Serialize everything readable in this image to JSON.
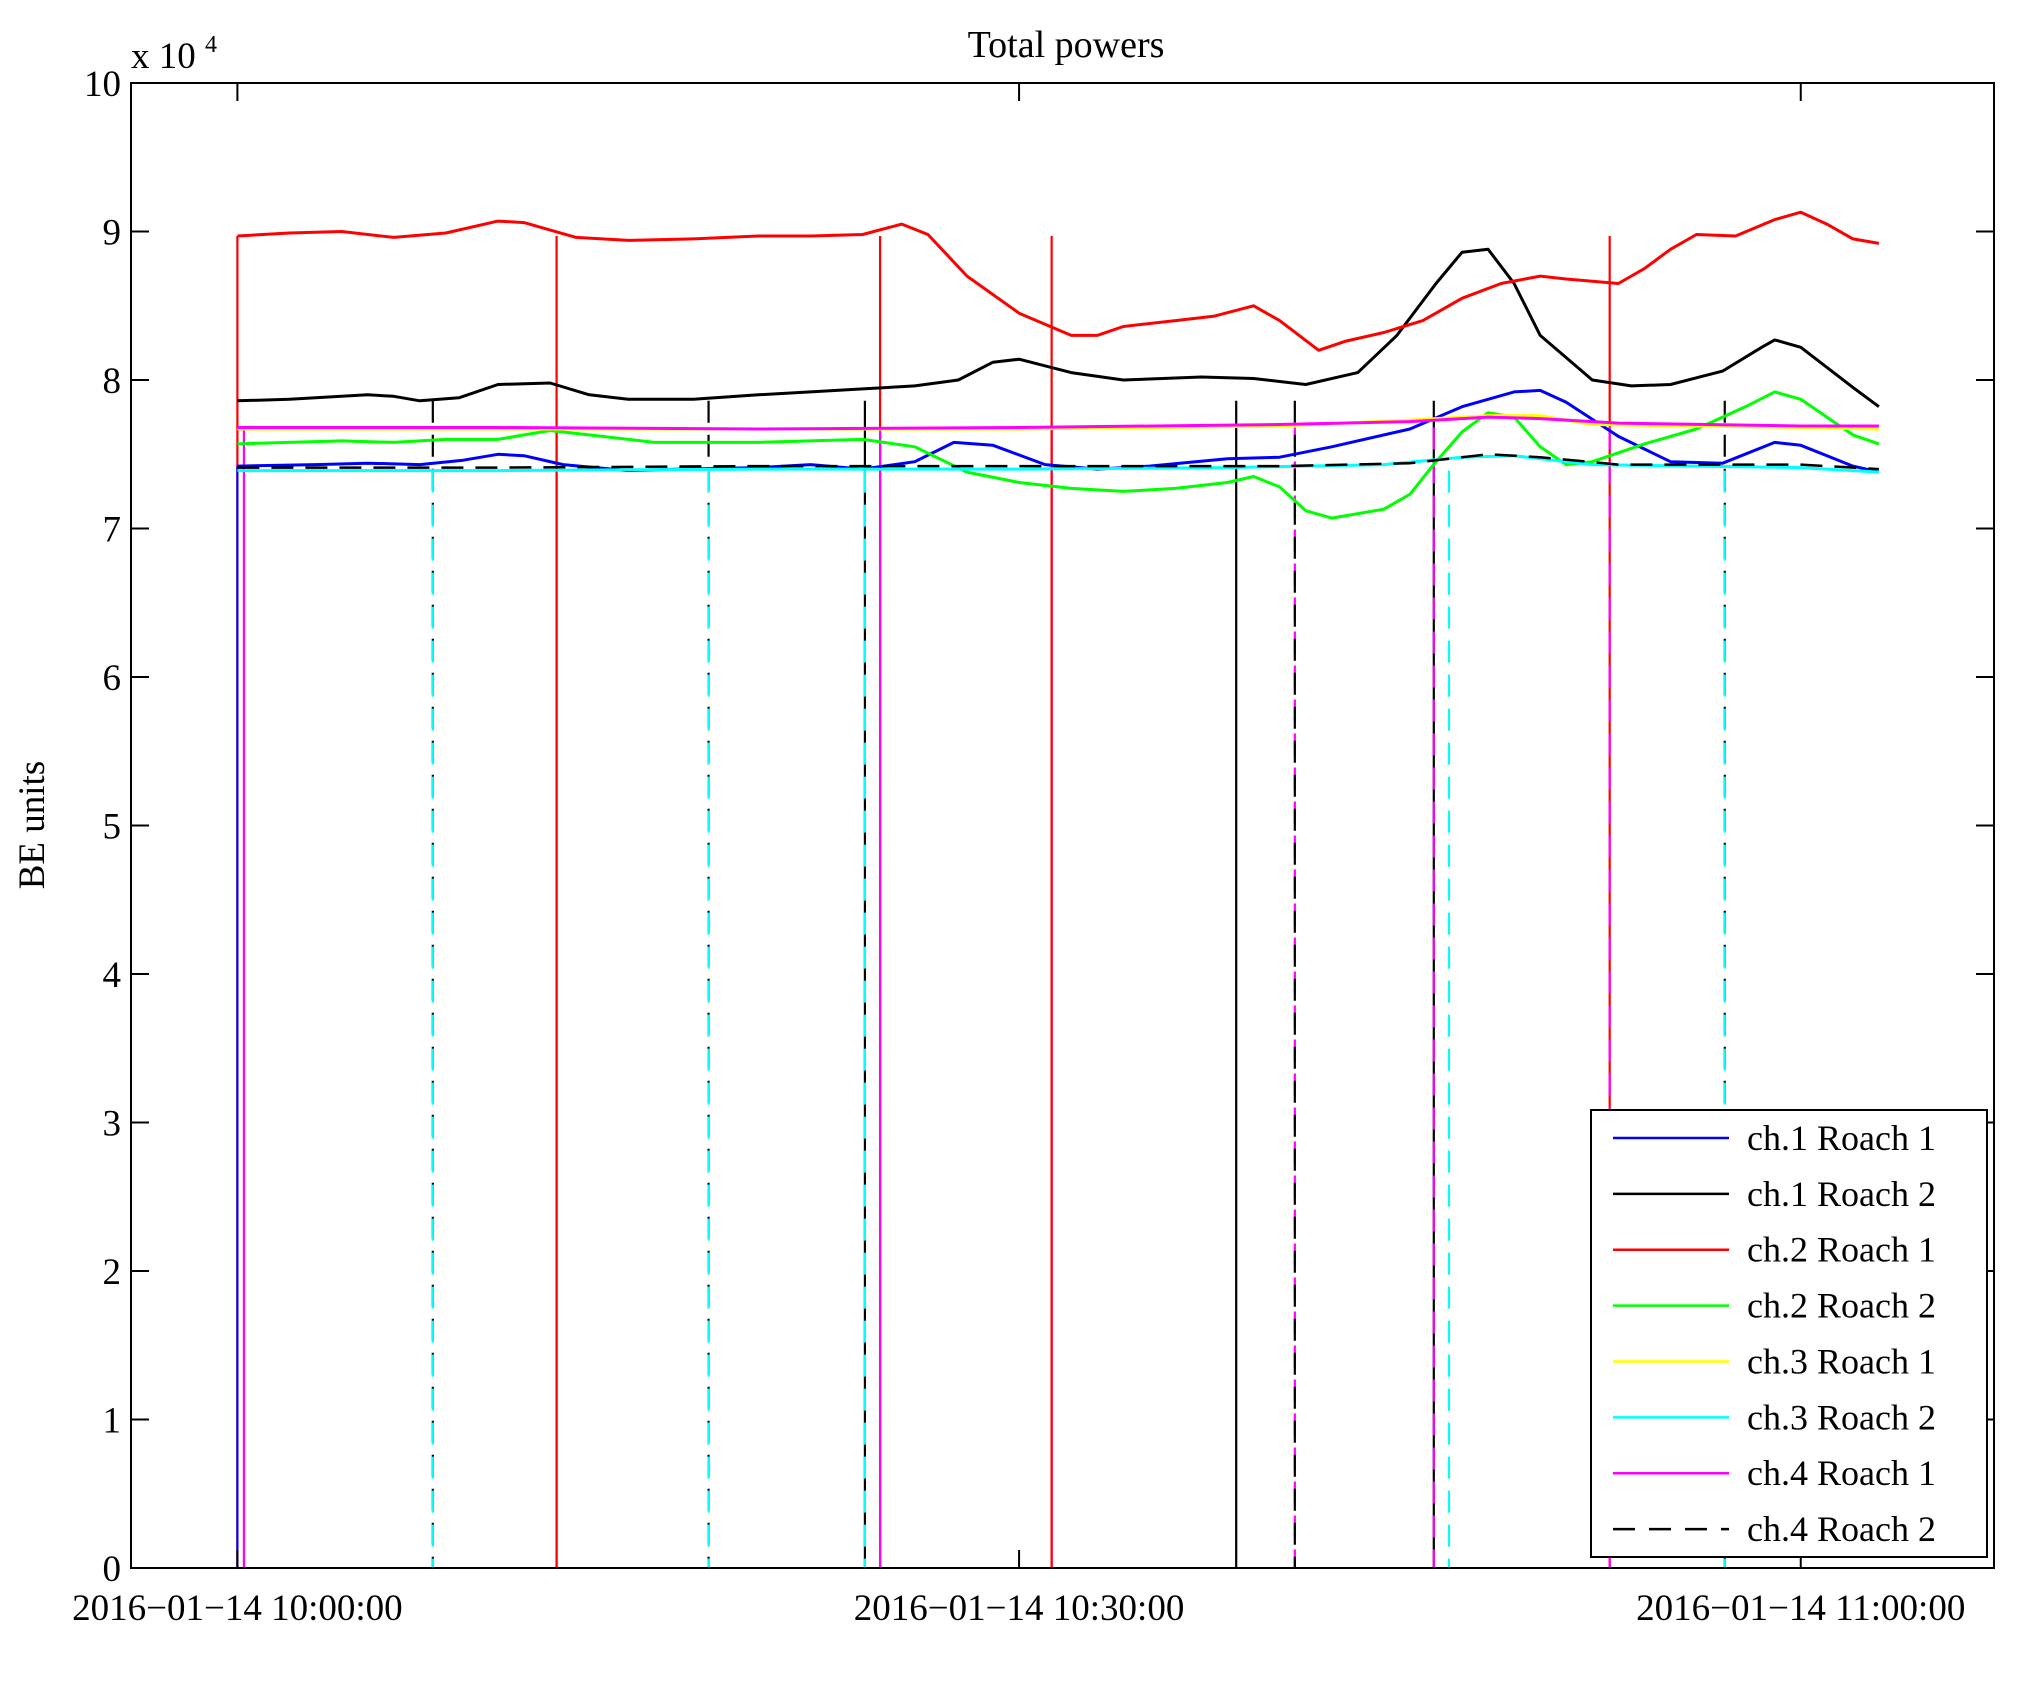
{
  "chart_data": {
    "type": "line",
    "title": "Total powers",
    "ylabel": "BE units",
    "xlabel": "",
    "y_multiplier_label": "x 10",
    "y_multiplier_exponent": "4",
    "ylim": [
      0,
      10
    ],
    "yticks": [
      0,
      1,
      2,
      3,
      4,
      5,
      6,
      7,
      8,
      9,
      10
    ],
    "ytick_labels": [
      "0",
      "1",
      "2",
      "3",
      "4",
      "5",
      "6",
      "7",
      "8",
      "9",
      "10"
    ],
    "xlim": [
      "2016-01-14 09:55:55",
      "2016-01-14 11:07:25"
    ],
    "xticks": [
      {
        "time": "2016-01-14 10:00:00",
        "label": "2016−01−14 10:00:00"
      },
      {
        "time": "2016-01-14 10:30:00",
        "label": "2016−01−14 10:30:00"
      },
      {
        "time": "2016-01-14 11:00:00",
        "label": "2016−01−14 11:00:00"
      }
    ],
    "legend_position": "bottom-right",
    "grid": false,
    "series": [
      {
        "name": "ch.1 Roach 1",
        "color": "#0000ff",
        "dash": "solid",
        "points": [
          [
            "10:00:00",
            7.42
          ],
          [
            "10:03:00",
            7.43
          ],
          [
            "10:05:00",
            7.44
          ],
          [
            "10:07:00",
            7.43
          ],
          [
            "10:08:40",
            7.46
          ],
          [
            "10:10:00",
            7.5
          ],
          [
            "10:11:00",
            7.49
          ],
          [
            "10:12:30",
            7.43
          ],
          [
            "10:15:00",
            7.39
          ],
          [
            "10:17:00",
            7.4
          ],
          [
            "10:20:00",
            7.41
          ],
          [
            "10:22:00",
            7.43
          ],
          [
            "10:24:00",
            7.4
          ],
          [
            "10:26:00",
            7.45
          ],
          [
            "10:27:30",
            7.58
          ],
          [
            "10:29:00",
            7.56
          ],
          [
            "10:31:00",
            7.43
          ],
          [
            "10:33:00",
            7.4
          ],
          [
            "10:35:00",
            7.42
          ],
          [
            "10:38:00",
            7.47
          ],
          [
            "10:40:00",
            7.48
          ],
          [
            "10:42:00",
            7.55
          ],
          [
            "10:45:00",
            7.67
          ],
          [
            "10:47:00",
            7.82
          ],
          [
            "10:49:00",
            7.92
          ],
          [
            "10:50:00",
            7.93
          ],
          [
            "10:51:00",
            7.85
          ],
          [
            "10:53:00",
            7.62
          ],
          [
            "10:55:00",
            7.45
          ],
          [
            "10:57:00",
            7.44
          ],
          [
            "10:59:00",
            7.58
          ],
          [
            "11:00:00",
            7.56
          ],
          [
            "11:02:00",
            7.42
          ],
          [
            "11:03:00",
            7.38
          ]
        ]
      },
      {
        "name": "ch.1 Roach 2",
        "color": "#000000",
        "dash": "solid",
        "points": [
          [
            "10:00:00",
            7.86
          ],
          [
            "10:02:00",
            7.87
          ],
          [
            "10:05:00",
            7.9
          ],
          [
            "10:06:00",
            7.89
          ],
          [
            "10:07:00",
            7.86
          ],
          [
            "10:08:30",
            7.88
          ],
          [
            "10:10:00",
            7.97
          ],
          [
            "10:12:00",
            7.98
          ],
          [
            "10:13:30",
            7.9
          ],
          [
            "10:15:00",
            7.87
          ],
          [
            "10:17:30",
            7.87
          ],
          [
            "10:20:00",
            7.9
          ],
          [
            "10:22:00",
            7.92
          ],
          [
            "10:24:00",
            7.94
          ],
          [
            "10:26:00",
            7.96
          ],
          [
            "10:27:40",
            8.0
          ],
          [
            "10:29:00",
            8.12
          ],
          [
            "10:30:00",
            8.14
          ],
          [
            "10:32:00",
            8.05
          ],
          [
            "10:34:00",
            8.0
          ],
          [
            "10:37:00",
            8.02
          ],
          [
            "10:39:00",
            8.01
          ],
          [
            "10:41:00",
            7.97
          ],
          [
            "10:43:00",
            8.05
          ],
          [
            "10:44:30",
            8.3
          ],
          [
            "10:46:00",
            8.65
          ],
          [
            "10:47:00",
            8.86
          ],
          [
            "10:48:00",
            8.88
          ],
          [
            "10:49:00",
            8.65
          ],
          [
            "10:50:00",
            8.3
          ],
          [
            "10:52:00",
            8.0
          ],
          [
            "10:53:30",
            7.96
          ],
          [
            "10:55:00",
            7.97
          ],
          [
            "10:57:00",
            8.06
          ],
          [
            "10:58:30",
            8.22
          ],
          [
            "10:59:00",
            8.27
          ],
          [
            "11:00:00",
            8.22
          ],
          [
            "11:02:00",
            7.95
          ],
          [
            "11:03:00",
            7.82
          ]
        ]
      },
      {
        "name": "ch.2 Roach 1",
        "color": "#ff0000",
        "dash": "solid",
        "points": [
          [
            "10:00:00",
            8.97
          ],
          [
            "10:02:00",
            8.99
          ],
          [
            "10:04:00",
            9.0
          ],
          [
            "10:06:00",
            8.96
          ],
          [
            "10:08:00",
            8.99
          ],
          [
            "10:10:00",
            9.07
          ],
          [
            "10:11:00",
            9.06
          ],
          [
            "10:13:00",
            8.96
          ],
          [
            "10:15:00",
            8.94
          ],
          [
            "10:17:30",
            8.95
          ],
          [
            "10:20:00",
            8.97
          ],
          [
            "10:22:00",
            8.97
          ],
          [
            "10:24:00",
            8.98
          ],
          [
            "10:25:30",
            9.05
          ],
          [
            "10:26:30",
            8.98
          ],
          [
            "10:28:00",
            8.7
          ],
          [
            "10:30:00",
            8.45
          ],
          [
            "10:32:00",
            8.3
          ],
          [
            "10:33:00",
            8.3
          ],
          [
            "10:34:00",
            8.36
          ],
          [
            "10:36:00",
            8.4
          ],
          [
            "10:37:30",
            8.43
          ],
          [
            "10:39:00",
            8.5
          ],
          [
            "10:40:00",
            8.4
          ],
          [
            "10:41:30",
            8.2
          ],
          [
            "10:42:30",
            8.26
          ],
          [
            "10:44:00",
            8.32
          ],
          [
            "10:45:30",
            8.4
          ],
          [
            "10:47:00",
            8.55
          ],
          [
            "10:48:30",
            8.65
          ],
          [
            "10:50:00",
            8.7
          ],
          [
            "10:51:00",
            8.68
          ],
          [
            "10:53:00",
            8.65
          ],
          [
            "10:54:00",
            8.75
          ],
          [
            "10:55:00",
            8.88
          ],
          [
            "10:56:00",
            8.98
          ],
          [
            "10:57:30",
            8.97
          ],
          [
            "10:59:00",
            9.08
          ],
          [
            "11:00:00",
            9.13
          ],
          [
            "11:01:00",
            9.05
          ],
          [
            "11:02:00",
            8.95
          ],
          [
            "11:03:00",
            8.92
          ]
        ]
      },
      {
        "name": "ch.2 Roach 2",
        "color": "#00ff00",
        "dash": "solid",
        "points": [
          [
            "10:00:00",
            7.57
          ],
          [
            "10:02:00",
            7.58
          ],
          [
            "10:04:00",
            7.59
          ],
          [
            "10:06:00",
            7.58
          ],
          [
            "10:08:00",
            7.6
          ],
          [
            "10:10:00",
            7.6
          ],
          [
            "10:12:00",
            7.66
          ],
          [
            "10:14:00",
            7.62
          ],
          [
            "10:16:00",
            7.58
          ],
          [
            "10:20:00",
            7.58
          ],
          [
            "10:24:00",
            7.6
          ],
          [
            "10:26:00",
            7.55
          ],
          [
            "10:28:00",
            7.38
          ],
          [
            "10:30:00",
            7.31
          ],
          [
            "10:32:00",
            7.27
          ],
          [
            "10:34:00",
            7.25
          ],
          [
            "10:36:00",
            7.27
          ],
          [
            "10:38:00",
            7.31
          ],
          [
            "10:39:00",
            7.35
          ],
          [
            "10:40:00",
            7.28
          ],
          [
            "10:41:00",
            7.12
          ],
          [
            "10:42:00",
            7.07
          ],
          [
            "10:44:00",
            7.13
          ],
          [
            "10:45:00",
            7.23
          ],
          [
            "10:46:00",
            7.45
          ],
          [
            "10:47:00",
            7.65
          ],
          [
            "10:48:00",
            7.78
          ],
          [
            "10:49:00",
            7.75
          ],
          [
            "10:50:00",
            7.55
          ],
          [
            "10:51:00",
            7.43
          ],
          [
            "10:52:00",
            7.45
          ],
          [
            "10:54:00",
            7.57
          ],
          [
            "10:56:00",
            7.67
          ],
          [
            "10:58:00",
            7.83
          ],
          [
            "10:59:00",
            7.92
          ],
          [
            "11:00:00",
            7.87
          ],
          [
            "11:01:00",
            7.75
          ],
          [
            "11:02:00",
            7.63
          ],
          [
            "11:03:00",
            7.57
          ]
        ]
      },
      {
        "name": "ch.3 Roach 1",
        "color": "#ffff00",
        "dash": "solid",
        "points": [
          [
            "10:00:00",
            7.67
          ],
          [
            "10:10:00",
            7.67
          ],
          [
            "10:20:00",
            7.67
          ],
          [
            "10:30:00",
            7.67
          ],
          [
            "10:40:00",
            7.69
          ],
          [
            "10:45:00",
            7.73
          ],
          [
            "10:48:00",
            7.76
          ],
          [
            "10:50:00",
            7.76
          ],
          [
            "10:52:00",
            7.7
          ],
          [
            "11:00:00",
            7.68
          ],
          [
            "11:03:00",
            7.67
          ]
        ]
      },
      {
        "name": "ch.3 Roach 2",
        "color": "#00ffff",
        "dash": "solid",
        "points": [
          [
            "10:00:00",
            7.39
          ],
          [
            "10:10:00",
            7.39
          ],
          [
            "10:20:00",
            7.4
          ],
          [
            "10:30:00",
            7.4
          ],
          [
            "10:38:00",
            7.41
          ],
          [
            "10:44:00",
            7.43
          ],
          [
            "10:47:00",
            7.48
          ],
          [
            "10:49:00",
            7.49
          ],
          [
            "10:52:00",
            7.43
          ],
          [
            "11:00:00",
            7.41
          ],
          [
            "11:03:00",
            7.38
          ]
        ]
      },
      {
        "name": "ch.4 Roach 1",
        "color": "#ff00ff",
        "dash": "solid",
        "points": [
          [
            "10:00:00",
            7.68
          ],
          [
            "10:10:00",
            7.68
          ],
          [
            "10:20:00",
            7.67
          ],
          [
            "10:30:00",
            7.68
          ],
          [
            "10:40:00",
            7.7
          ],
          [
            "10:45:00",
            7.72
          ],
          [
            "10:48:00",
            7.75
          ],
          [
            "10:50:00",
            7.74
          ],
          [
            "10:53:00",
            7.71
          ],
          [
            "11:00:00",
            7.69
          ],
          [
            "11:03:00",
            7.69
          ]
        ]
      },
      {
        "name": "ch.4 Roach 2",
        "color": "#000000",
        "dash": "dashed",
        "points": [
          [
            "10:00:00",
            7.41
          ],
          [
            "10:10:00",
            7.41
          ],
          [
            "10:20:00",
            7.42
          ],
          [
            "10:30:00",
            7.42
          ],
          [
            "10:40:00",
            7.42
          ],
          [
            "10:45:00",
            7.44
          ],
          [
            "10:48:00",
            7.5
          ],
          [
            "10:50:00",
            7.48
          ],
          [
            "10:53:00",
            7.43
          ],
          [
            "11:00:00",
            7.43
          ],
          [
            "11:03:00",
            7.4
          ]
        ]
      }
    ],
    "dropouts": [
      {
        "time": "10:00:00",
        "color": "#ff0000",
        "dash": "solid"
      },
      {
        "time": "10:00:00",
        "color": "#0000ff",
        "dash": "solid"
      },
      {
        "time": "10:00:15",
        "color": "#ff00ff",
        "dash": "solid"
      },
      {
        "time": "10:07:30",
        "color": "#000000",
        "dash": "dashed"
      },
      {
        "time": "10:07:30",
        "color": "#00ffff",
        "dash": "dashed"
      },
      {
        "time": "10:12:15",
        "color": "#ff00ff",
        "dash": "solid"
      },
      {
        "time": "10:12:15",
        "color": "#ff0000",
        "dash": "solid"
      },
      {
        "time": "10:18:05",
        "color": "#000000",
        "dash": "dashed"
      },
      {
        "time": "10:18:05",
        "color": "#00ffff",
        "dash": "dashed"
      },
      {
        "time": "10:24:05",
        "color": "#000000",
        "dash": "solid"
      },
      {
        "time": "10:24:05",
        "color": "#00ffff",
        "dash": "dashed"
      },
      {
        "time": "10:24:40",
        "color": "#ff0000",
        "dash": "solid"
      },
      {
        "time": "10:24:40",
        "color": "#ff00ff",
        "dash": "solid"
      },
      {
        "time": "10:31:15",
        "color": "#ff00ff",
        "dash": "solid"
      },
      {
        "time": "10:31:15",
        "color": "#ff0000",
        "dash": "solid"
      },
      {
        "time": "10:38:20",
        "color": "#000000",
        "dash": "solid"
      },
      {
        "time": "10:40:35",
        "color": "#ff00ff",
        "dash": "dashed"
      },
      {
        "time": "10:40:35",
        "color": "#000000",
        "dash": "dashed"
      },
      {
        "time": "10:45:55",
        "color": "#000000",
        "dash": "solid"
      },
      {
        "time": "10:45:55",
        "color": "#ff00ff",
        "dash": "dashed"
      },
      {
        "time": "10:46:30",
        "color": "#00ffff",
        "dash": "dashed"
      },
      {
        "time": "10:52:40",
        "color": "#ff0000",
        "dash": "solid"
      },
      {
        "time": "10:52:40",
        "color": "#ff00ff",
        "dash": "dashed"
      },
      {
        "time": "10:57:05",
        "color": "#000000",
        "dash": "dashed"
      },
      {
        "time": "10:57:05",
        "color": "#00ffff",
        "dash": "dashed"
      }
    ]
  }
}
